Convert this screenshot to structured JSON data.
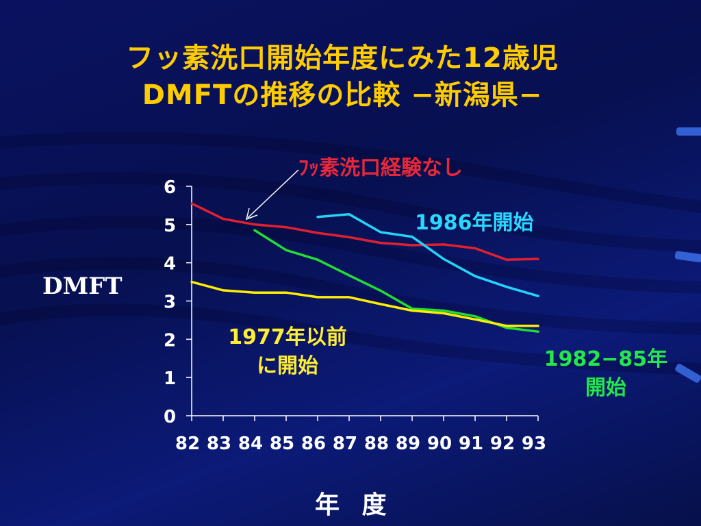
{
  "slide": {
    "title_line1": "フッ素洗口開始年度にみた12歳児",
    "title_line2": "DMFTの推移の比較 −新潟県−"
  },
  "labels": {
    "no_fluoride": "ﾌｯ素洗口経験なし",
    "start_1986": "1986年開始",
    "start_1977_line1": "1977年以前",
    "start_1977_line2": "に開始",
    "start_1982_line1": "1982−85年",
    "start_1982_line2": "開始"
  },
  "chart_data": {
    "type": "line",
    "xlabel": "年 度",
    "ylabel": "DMFT",
    "categories": [
      "82",
      "83",
      "84",
      "85",
      "86",
      "87",
      "88",
      "89",
      "90",
      "91",
      "92",
      "93"
    ],
    "ylim": [
      0,
      6
    ],
    "yticks": [
      "0",
      "1",
      "2",
      "3",
      "4",
      "5",
      "6"
    ],
    "series": [
      {
        "name": "ﾌｯ素洗口経験なし",
        "color": "#e0202e",
        "values": [
          5.55,
          5.15,
          5.0,
          4.93,
          4.78,
          4.67,
          4.52,
          4.46,
          4.48,
          4.38,
          4.08,
          4.1
        ]
      },
      {
        "name": "1986年開始",
        "color": "#22d6f8",
        "values": [
          null,
          null,
          null,
          null,
          5.2,
          5.27,
          4.8,
          4.68,
          4.1,
          3.65,
          3.37,
          3.13
        ]
      },
      {
        "name": "1982−85年開始",
        "color": "#22dd33",
        "values": [
          null,
          null,
          4.85,
          4.33,
          4.08,
          3.67,
          3.27,
          2.8,
          2.75,
          2.6,
          2.3,
          2.2
        ]
      },
      {
        "name": "1977年以前に開始",
        "color": "#ffee00",
        "values": [
          3.5,
          3.28,
          3.22,
          3.22,
          3.1,
          3.1,
          2.92,
          2.75,
          2.68,
          2.52,
          2.35,
          2.35
        ]
      }
    ]
  }
}
